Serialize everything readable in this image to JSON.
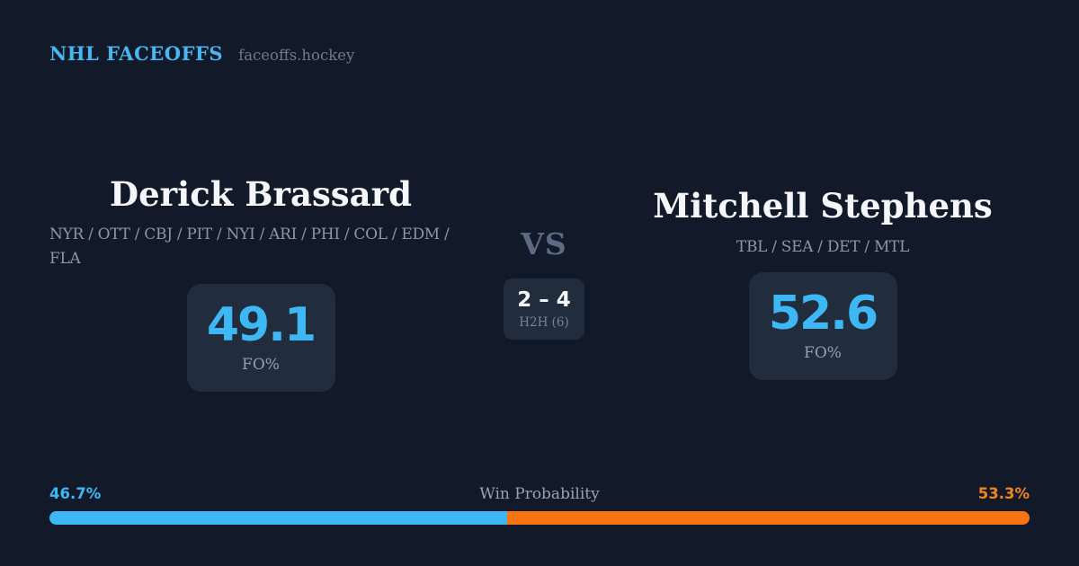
{
  "header": {
    "brand": "NHL FACEOFFS",
    "domain": "faceoffs.hockey"
  },
  "players": [
    {
      "name": "Derick Brassard",
      "teams_lines": [
        "NYR / OTT / CBJ / PIT / NYI / ARI / PHI / COL / EDM /",
        "FLA"
      ],
      "fo_pct": "49.1",
      "fo_label": "FO%"
    },
    {
      "name": "Mitchell Stephens",
      "teams_lines": [
        "TBL / SEA / DET / MTL"
      ],
      "fo_pct": "52.6",
      "fo_label": "FO%"
    }
  ],
  "matchup": {
    "vs_label": "VS",
    "h2h_score": "2 – 4",
    "h2h_label": "H2H (6)"
  },
  "win_probability": {
    "label": "Win Probability",
    "left_pct": "46.7%",
    "right_pct": "53.3%",
    "left_value": 46.7,
    "right_value": 53.3
  },
  "colors": {
    "background": "#121a29",
    "card": "#212c3d",
    "accent_blue": "#3db8f5",
    "brand_blue": "#47b7f2",
    "accent_orange": "#f97514",
    "orange_text": "#f5831d",
    "muted_text": "#8b97a9",
    "vs_text": "#5d6b82",
    "white_text": "#f4f6f9"
  }
}
